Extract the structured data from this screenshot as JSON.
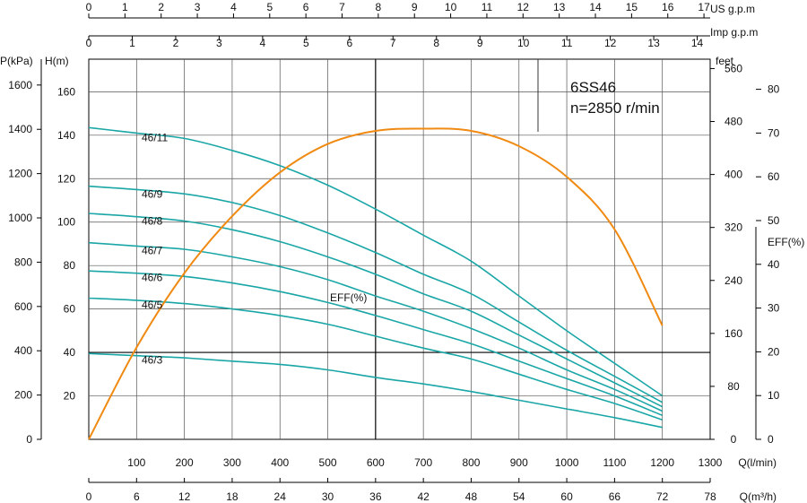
{
  "chart_data": {
    "type": "line",
    "model_label": "6SS46",
    "speed_label": "n=2850 r/min",
    "x_axis": {
      "label": "Q(l/min)",
      "ticks": [
        100,
        200,
        300,
        400,
        500,
        600,
        700,
        800,
        900,
        1000,
        1100,
        1200,
        1300
      ],
      "xlim": [
        0,
        1300
      ]
    },
    "x_axis_m3h": {
      "label": "Q(m³/h)",
      "ticks": [
        0,
        6,
        12,
        18,
        24,
        30,
        36,
        42,
        48,
        54,
        60,
        66,
        72,
        78
      ]
    },
    "x_axis_usgpm": {
      "label": "US  g.p.m",
      "ticks": [
        0,
        1,
        2,
        3,
        4,
        5,
        6,
        7,
        8,
        9,
        10,
        11,
        12,
        13,
        14,
        15,
        16,
        17
      ]
    },
    "x_axis_impgpm": {
      "label": "Imp  g.p.m",
      "ticks": [
        0,
        1,
        2,
        3,
        4,
        5,
        6,
        7,
        8,
        9,
        10,
        11,
        12,
        13,
        14
      ]
    },
    "y_axis_head": {
      "label": "H(m)",
      "ticks": [
        20,
        40,
        60,
        80,
        100,
        120,
        140,
        160
      ],
      "ylim": [
        0,
        175
      ]
    },
    "y_axis_pressure": {
      "label": "P(kPa)",
      "ticks": [
        0,
        200,
        400,
        600,
        800,
        1000,
        1200,
        1400,
        1600
      ]
    },
    "y_axis_feet": {
      "label": "feet",
      "ticks": [
        0,
        80,
        160,
        240,
        320,
        400,
        480,
        560
      ]
    },
    "y_axis_eff": {
      "label": "EFF(%)",
      "ticks": [
        0,
        10,
        20,
        30,
        40,
        50,
        60,
        70,
        80
      ]
    },
    "series": [
      {
        "name": "46/11",
        "x": [
          0,
          100,
          200,
          300,
          400,
          500,
          600,
          700,
          800,
          900,
          1000,
          1100,
          1200
        ],
        "y": [
          143.5,
          141,
          138.5,
          133,
          126,
          117,
          106,
          94,
          82,
          66,
          50,
          35,
          20
        ]
      },
      {
        "name": "46/9",
        "x": [
          0,
          100,
          200,
          300,
          400,
          500,
          600,
          700,
          800,
          900,
          1000,
          1100,
          1200
        ],
        "y": [
          116.5,
          115,
          113,
          109,
          103,
          95,
          86,
          76,
          67,
          54,
          41,
          29,
          17
        ]
      },
      {
        "name": "46/8",
        "x": [
          0,
          100,
          200,
          300,
          400,
          500,
          600,
          700,
          800,
          900,
          1000,
          1100,
          1200
        ],
        "y": [
          104,
          102.5,
          100.5,
          96.5,
          91,
          84,
          76,
          67,
          59,
          48,
          37,
          26,
          15
        ]
      },
      {
        "name": "46/7",
        "x": [
          0,
          100,
          200,
          300,
          400,
          500,
          600,
          700,
          800,
          900,
          1000,
          1100,
          1200
        ],
        "y": [
          90.5,
          89,
          87.5,
          84,
          79.5,
          73.5,
          66,
          59,
          51,
          42,
          32,
          23,
          13
        ]
      },
      {
        "name": "46/6",
        "x": [
          0,
          100,
          200,
          300,
          400,
          500,
          600,
          700,
          800,
          900,
          1000,
          1100,
          1200
        ],
        "y": [
          77.5,
          76.5,
          75,
          72,
          68,
          63,
          57,
          50.5,
          44,
          36,
          28,
          20,
          11
        ]
      },
      {
        "name": "46/5",
        "x": [
          0,
          100,
          200,
          300,
          400,
          500,
          600,
          700,
          800,
          900,
          1000,
          1100,
          1200
        ],
        "y": [
          65,
          64,
          62.5,
          60,
          57,
          53,
          47.5,
          42,
          37,
          30,
          23,
          16.5,
          9
        ]
      },
      {
        "name": "46/3",
        "x": [
          0,
          100,
          200,
          300,
          400,
          500,
          600,
          700,
          800,
          900,
          1000,
          1100,
          1200
        ],
        "y": [
          39.5,
          38.5,
          37.5,
          36,
          34.5,
          32,
          28.5,
          25.5,
          22,
          18,
          14,
          10,
          5.5
        ]
      }
    ],
    "efficiency_curve": {
      "name": "EFF(%)",
      "x": [
        0,
        100,
        200,
        300,
        400,
        500,
        600,
        700,
        800,
        900,
        1000,
        1100,
        1200
      ],
      "eff": [
        0,
        21,
        38,
        51,
        61,
        67.5,
        70.5,
        71,
        70.5,
        67,
        60,
        48,
        26
      ]
    }
  },
  "colors": {
    "head_curve": "#1aa6a6",
    "efficiency_curve": "#f08a12",
    "grid": "#555555",
    "crosshair": "#000000"
  }
}
